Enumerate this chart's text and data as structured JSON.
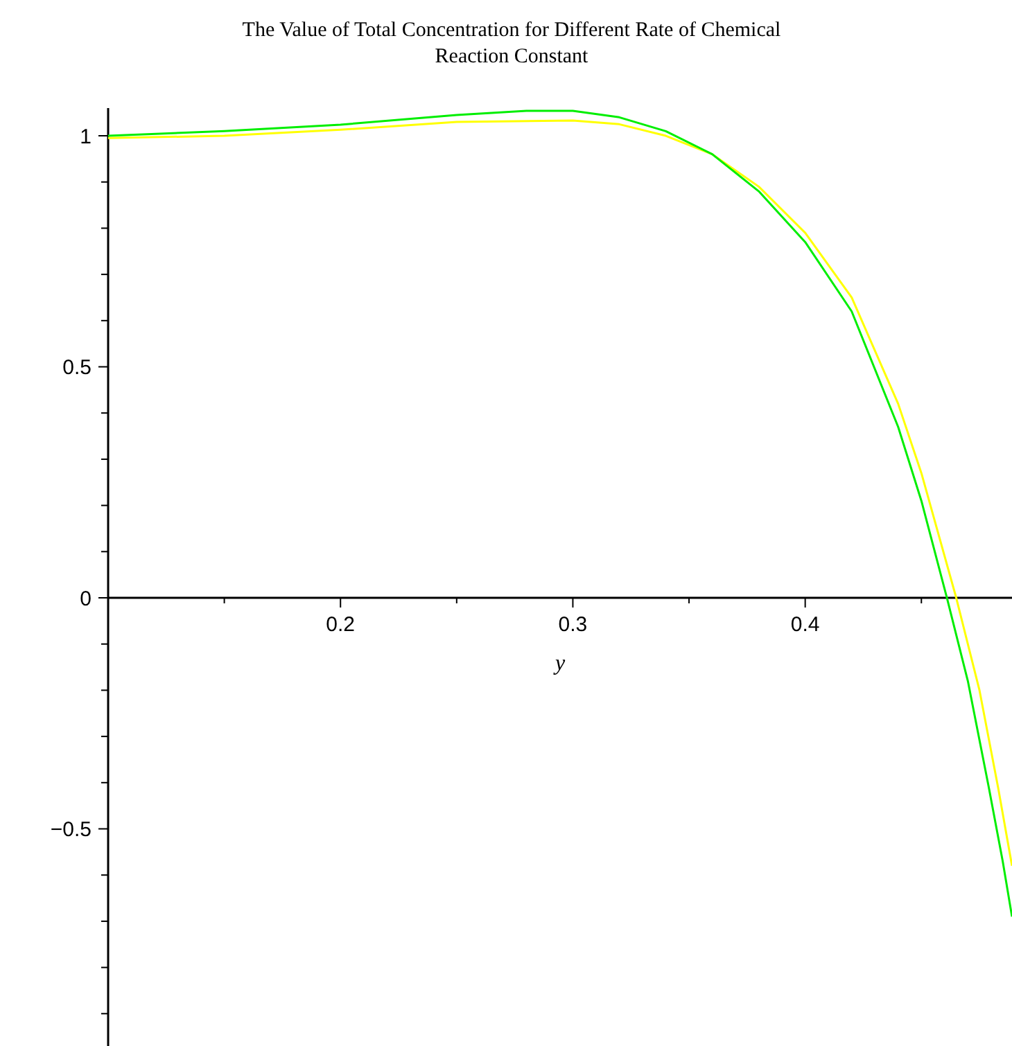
{
  "chart_data": {
    "type": "line",
    "title": "The Value of Total Concentration for Different Rate of Chemical Reaction Constant",
    "xlabel": "y",
    "xlim": [
      0.1,
      0.489
    ],
    "ylim": [
      -0.97,
      1.06
    ],
    "xticks": [
      {
        "value": 0.15,
        "label": null
      },
      0.2,
      {
        "value": 0.25,
        "label": null
      },
      0.3,
      {
        "value": 0.35,
        "label": null
      },
      0.4,
      {
        "value": 0.45,
        "label": null
      }
    ],
    "yticks": [
      {
        "value": -0.9,
        "label": null
      },
      {
        "value": -0.8,
        "label": null
      },
      {
        "value": -0.7,
        "label": null
      },
      {
        "value": -0.6,
        "label": null
      },
      -0.5,
      {
        "value": -0.4,
        "label": null
      },
      {
        "value": -0.3,
        "label": null
      },
      {
        "value": -0.2,
        "label": null
      },
      {
        "value": -0.1,
        "label": null
      },
      0,
      {
        "value": 0.1,
        "label": null
      },
      {
        "value": 0.2,
        "label": null
      },
      {
        "value": 0.3,
        "label": null
      },
      {
        "value": 0.4,
        "label": null
      },
      0.5,
      {
        "value": 0.6,
        "label": null
      },
      {
        "value": 0.7,
        "label": null
      },
      {
        "value": 0.8,
        "label": null
      },
      {
        "value": 0.9,
        "label": null
      },
      1
    ],
    "grid": false,
    "marker": "none",
    "line_style": "solid",
    "series": [
      {
        "color": "#ffff00",
        "x": [
          0.1,
          0.15,
          0.2,
          0.25,
          0.3,
          0.32,
          0.34,
          0.36,
          0.38,
          0.4,
          0.42,
          0.44,
          0.45,
          0.465,
          0.475,
          0.483,
          0.489
        ],
        "values": [
          0.995,
          1.0,
          1.013,
          1.03,
          1.033,
          1.025,
          1.0,
          0.96,
          0.89,
          0.79,
          0.65,
          0.42,
          0.27,
          0,
          -0.2,
          -0.41,
          -0.58
        ]
      },
      {
        "color": "#00ee00",
        "x": [
          0.1,
          0.15,
          0.2,
          0.25,
          0.28,
          0.3,
          0.32,
          0.34,
          0.36,
          0.38,
          0.4,
          0.42,
          0.44,
          0.45,
          0.461,
          0.47,
          0.479,
          0.485,
          0.489
        ],
        "values": [
          1.0,
          1.01,
          1.024,
          1.045,
          1.054,
          1.054,
          1.04,
          1.01,
          0.96,
          0.88,
          0.77,
          0.62,
          0.37,
          0.21,
          0,
          -0.18,
          -0.41,
          -0.57,
          -0.69
        ]
      }
    ]
  }
}
